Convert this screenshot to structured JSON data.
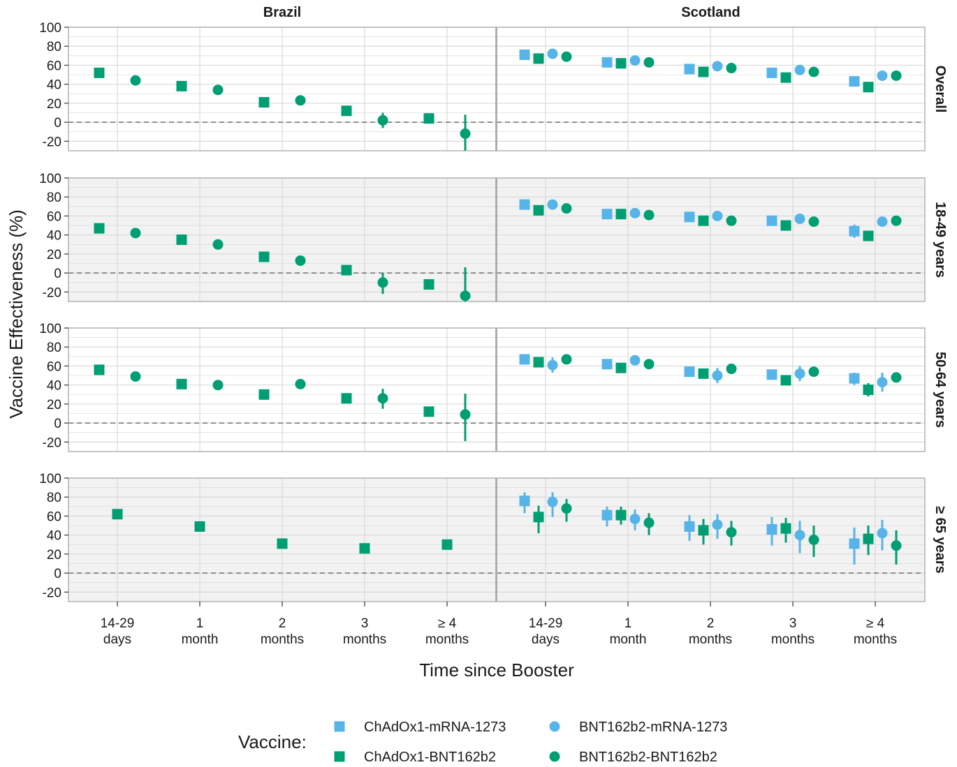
{
  "chart_data": {
    "type": "scatter",
    "title": "",
    "xlabel": "Time since Booster",
    "ylabel": "Vaccine Effectiveness (%)",
    "ylim": [
      -30,
      100
    ],
    "y_ticks": [
      "100",
      "80",
      "60",
      "40",
      "20",
      "0",
      "-20"
    ],
    "y_tick_values": [
      100,
      80,
      60,
      40,
      20,
      0,
      -20
    ],
    "reference_line": 0,
    "categories": [
      "14-29\ndays",
      "1\nmonth",
      "2\nmonths",
      "3\nmonths",
      "≥ 4\nmonths"
    ],
    "columns": [
      "Brazil",
      "Scotland"
    ],
    "rows": [
      "Overall",
      "18-49 years",
      "50-64 years",
      "≥ 65 years"
    ],
    "legend": {
      "title": "Vaccine:",
      "placement": "bottom",
      "items": [
        {
          "label": "ChAdOx1-mRNA-1273",
          "shape": "square",
          "color": "#56B4E9"
        },
        {
          "label": "BNT162b2-mRNA-1273",
          "shape": "circle",
          "color": "#56B4E9"
        },
        {
          "label": "ChAdOx1-BNT162b2",
          "shape": "square",
          "color": "#009E73"
        },
        {
          "label": "BNT162b2-BNT162b2",
          "shape": "circle",
          "color": "#009E73"
        }
      ]
    },
    "series_order": [
      "ChAdOx1-mRNA-1273",
      "ChAdOx1-BNT162b2",
      "BNT162b2-mRNA-1273",
      "BNT162b2-BNT162b2"
    ],
    "panels": [
      {
        "row": "Overall",
        "column": "Brazil",
        "series": [
          {
            "name": "ChAdOx1-BNT162b2",
            "values": [
              52,
              38,
              21,
              12,
              4
            ],
            "lower": [
              50,
              36,
              19,
              10,
              2
            ],
            "upper": [
              54,
              40,
              23,
              14,
              6
            ]
          },
          {
            "name": "BNT162b2-BNT162b2",
            "values": [
              44,
              34,
              23,
              2,
              -12
            ],
            "lower": [
              42,
              32,
              21,
              -6,
              -30
            ],
            "upper": [
              46,
              36,
              25,
              10,
              8
            ]
          }
        ]
      },
      {
        "row": "Overall",
        "column": "Scotland",
        "series": [
          {
            "name": "ChAdOx1-mRNA-1273",
            "values": [
              71,
              63,
              56,
              52,
              43
            ],
            "lower": [
              69,
              61,
              54,
              50,
              41
            ],
            "upper": [
              73,
              65,
              58,
              54,
              45
            ]
          },
          {
            "name": "ChAdOx1-BNT162b2",
            "values": [
              67,
              62,
              53,
              47,
              37
            ],
            "lower": [
              65,
              60,
              51,
              45,
              35
            ],
            "upper": [
              69,
              64,
              55,
              49,
              39
            ]
          },
          {
            "name": "BNT162b2-mRNA-1273",
            "values": [
              72,
              65,
              59,
              55,
              49
            ],
            "lower": [
              70,
              63,
              57,
              53,
              47
            ],
            "upper": [
              74,
              67,
              61,
              57,
              51
            ]
          },
          {
            "name": "BNT162b2-BNT162b2",
            "values": [
              69,
              63,
              57,
              53,
              49
            ],
            "lower": [
              67,
              61,
              55,
              51,
              47
            ],
            "upper": [
              71,
              65,
              59,
              55,
              51
            ]
          }
        ]
      },
      {
        "row": "18-49 years",
        "column": "Brazil",
        "series": [
          {
            "name": "ChAdOx1-BNT162b2",
            "values": [
              47,
              35,
              17,
              3,
              -12
            ],
            "lower": [
              45,
              33,
              15,
              1,
              -16
            ],
            "upper": [
              49,
              37,
              19,
              5,
              -8
            ]
          },
          {
            "name": "BNT162b2-BNT162b2",
            "values": [
              42,
              30,
              13,
              -10,
              -24
            ],
            "lower": [
              40,
              28,
              11,
              -22,
              -30
            ],
            "upper": [
              44,
              32,
              15,
              0,
              6
            ]
          }
        ]
      },
      {
        "row": "18-49 years",
        "column": "Scotland",
        "series": [
          {
            "name": "ChAdOx1-mRNA-1273",
            "values": [
              72,
              62,
              59,
              55,
              44
            ],
            "lower": [
              70,
              60,
              57,
              53,
              37
            ],
            "upper": [
              74,
              64,
              61,
              57,
              51
            ]
          },
          {
            "name": "ChAdOx1-BNT162b2",
            "values": [
              66,
              62,
              55,
              50,
              39
            ],
            "lower": [
              64,
              60,
              53,
              48,
              36
            ],
            "upper": [
              68,
              64,
              57,
              52,
              42
            ]
          },
          {
            "name": "BNT162b2-mRNA-1273",
            "values": [
              72,
              63,
              60,
              57,
              54
            ],
            "lower": [
              70,
              61,
              58,
              55,
              50
            ],
            "upper": [
              74,
              65,
              62,
              59,
              58
            ]
          },
          {
            "name": "BNT162b2-BNT162b2",
            "values": [
              68,
              61,
              55,
              54,
              55
            ],
            "lower": [
              66,
              59,
              53,
              52,
              53
            ],
            "upper": [
              70,
              63,
              57,
              56,
              57
            ]
          }
        ]
      },
      {
        "row": "50-64 years",
        "column": "Brazil",
        "series": [
          {
            "name": "ChAdOx1-BNT162b2",
            "values": [
              56,
              41,
              30,
              26,
              12
            ],
            "lower": [
              54,
              39,
              28,
              24,
              8
            ],
            "upper": [
              58,
              43,
              32,
              28,
              16
            ]
          },
          {
            "name": "BNT162b2-BNT162b2",
            "values": [
              49,
              40,
              41,
              26,
              9
            ],
            "lower": [
              47,
              38,
              39,
              15,
              -19
            ],
            "upper": [
              51,
              42,
              43,
              36,
              31
            ]
          }
        ]
      },
      {
        "row": "50-64 years",
        "column": "Scotland",
        "series": [
          {
            "name": "ChAdOx1-mRNA-1273",
            "values": [
              67,
              62,
              54,
              51,
              47
            ],
            "lower": [
              65,
              60,
              52,
              49,
              40
            ],
            "upper": [
              69,
              64,
              56,
              53,
              53
            ]
          },
          {
            "name": "ChAdOx1-BNT162b2",
            "values": [
              64,
              58,
              52,
              45,
              35
            ],
            "lower": [
              62,
              56,
              50,
              43,
              28
            ],
            "upper": [
              66,
              60,
              54,
              47,
              42
            ]
          },
          {
            "name": "BNT162b2-mRNA-1273",
            "values": [
              61,
              66,
              50,
              52,
              43
            ],
            "lower": [
              53,
              62,
              42,
              44,
              33
            ],
            "upper": [
              69,
              70,
              58,
              60,
              53
            ]
          },
          {
            "name": "BNT162b2-BNT162b2",
            "values": [
              67,
              62,
              57,
              54,
              48
            ],
            "lower": [
              65,
              60,
              55,
              52,
              46
            ],
            "upper": [
              69,
              64,
              59,
              56,
              50
            ]
          }
        ]
      },
      {
        "row": "≥ 65 years",
        "column": "Brazil",
        "series": [
          {
            "name": "ChAdOx1-BNT162b2",
            "values": [
              62,
              49,
              31,
              26,
              30
            ],
            "lower": [
              60,
              47,
              29,
              24,
              28
            ],
            "upper": [
              64,
              51,
              33,
              28,
              32
            ]
          }
        ]
      },
      {
        "row": "≥ 65 years",
        "column": "Scotland",
        "series": [
          {
            "name": "ChAdOx1-mRNA-1273",
            "values": [
              76,
              61,
              49,
              46,
              31
            ],
            "lower": [
              63,
              49,
              34,
              29,
              9
            ],
            "upper": [
              85,
              70,
              61,
              59,
              48
            ]
          },
          {
            "name": "ChAdOx1-BNT162b2",
            "values": [
              59,
              61,
              45,
              47,
              36
            ],
            "lower": [
              42,
              51,
              30,
              32,
              19
            ],
            "upper": [
              71,
              70,
              57,
              58,
              50
            ]
          },
          {
            "name": "BNT162b2-mRNA-1273",
            "values": [
              75,
              57,
              51,
              40,
              42
            ],
            "lower": [
              59,
              45,
              36,
              21,
              24
            ],
            "upper": [
              85,
              67,
              62,
              55,
              56
            ]
          },
          {
            "name": "BNT162b2-BNT162b2",
            "values": [
              68,
              53,
              43,
              35,
              29
            ],
            "lower": [
              54,
              40,
              29,
              17,
              9
            ],
            "upper": [
              78,
              63,
              55,
              50,
              45
            ]
          }
        ]
      }
    ]
  },
  "colors": {
    "blue": "#56B4E9",
    "green": "#009E73",
    "panel_fill_alt": "#f2f2f2",
    "grid": "#d9d9d9",
    "border": "#b3b3b3"
  }
}
